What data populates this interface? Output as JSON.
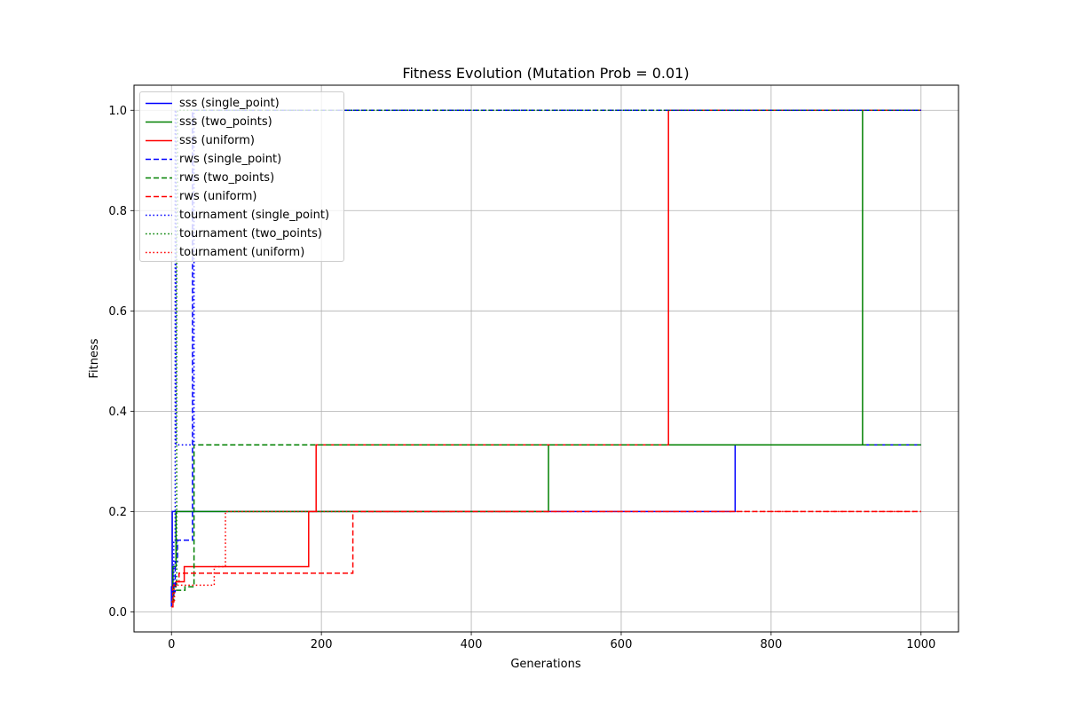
{
  "chart_data": {
    "type": "line",
    "title": "Fitness Evolution (Mutation Prob = 0.01)",
    "xlabel": "Generations",
    "ylabel": "Fitness",
    "xlim": [
      -50,
      1050
    ],
    "ylim": [
      -0.04,
      1.05
    ],
    "xticks": [
      0,
      200,
      400,
      600,
      800,
      1000
    ],
    "yticks": [
      0.0,
      0.2,
      0.4,
      0.6,
      0.8,
      1.0
    ],
    "xtick_labels": [
      "0",
      "200",
      "400",
      "600",
      "800",
      "1000"
    ],
    "ytick_labels": [
      "0.0",
      "0.2",
      "0.4",
      "0.6",
      "0.8",
      "1.0"
    ],
    "grid": true,
    "legend_position": "upper-left",
    "series": [
      {
        "name": "sss (single_point)",
        "color": "#0000ff",
        "style": "solid",
        "points": [
          [
            0,
            0.01
          ],
          [
            0,
            0.05
          ],
          [
            1,
            0.05
          ],
          [
            1,
            0.2
          ],
          [
            752,
            0.2
          ],
          [
            752,
            0.333
          ],
          [
            1000,
            0.333
          ]
        ]
      },
      {
        "name": "sss (two_points)",
        "color": "#008000",
        "style": "solid",
        "points": [
          [
            0,
            0.02
          ],
          [
            2,
            0.02
          ],
          [
            2,
            0.09
          ],
          [
            6,
            0.09
          ],
          [
            6,
            0.2
          ],
          [
            503,
            0.2
          ],
          [
            503,
            0.333
          ],
          [
            922,
            0.333
          ],
          [
            922,
            1.0
          ],
          [
            1000,
            1.0
          ]
        ]
      },
      {
        "name": "sss (uniform)",
        "color": "#ff0000",
        "style": "solid",
        "points": [
          [
            0,
            0.01
          ],
          [
            2,
            0.01
          ],
          [
            2,
            0.05
          ],
          [
            6,
            0.05
          ],
          [
            6,
            0.06
          ],
          [
            17,
            0.06
          ],
          [
            17,
            0.09
          ],
          [
            183,
            0.09
          ],
          [
            183,
            0.2
          ],
          [
            193,
            0.2
          ],
          [
            193,
            0.333
          ],
          [
            663,
            0.333
          ],
          [
            663,
            1.0
          ],
          [
            1000,
            1.0
          ]
        ]
      },
      {
        "name": "rws (single_point)",
        "color": "#0000ff",
        "style": "dashed",
        "points": [
          [
            0,
            0.04
          ],
          [
            5,
            0.04
          ],
          [
            5,
            0.1
          ],
          [
            8,
            0.1
          ],
          [
            8,
            0.143
          ],
          [
            28,
            0.143
          ],
          [
            28,
            1.0
          ],
          [
            1000,
            1.0
          ]
        ]
      },
      {
        "name": "rws (two_points)",
        "color": "#008000",
        "style": "dashed",
        "points": [
          [
            0,
            0.02
          ],
          [
            3,
            0.02
          ],
          [
            3,
            0.043
          ],
          [
            18,
            0.043
          ],
          [
            18,
            0.05
          ],
          [
            30,
            0.05
          ],
          [
            30,
            0.333
          ],
          [
            1000,
            0.333
          ]
        ]
      },
      {
        "name": "rws (uniform)",
        "color": "#ff0000",
        "style": "dashed",
        "points": [
          [
            0,
            0.02
          ],
          [
            3,
            0.02
          ],
          [
            3,
            0.06
          ],
          [
            10,
            0.06
          ],
          [
            10,
            0.077
          ],
          [
            242,
            0.077
          ],
          [
            242,
            0.2
          ],
          [
            1000,
            0.2
          ]
        ]
      },
      {
        "name": "tournament (single_point)",
        "color": "#0000ff",
        "style": "dotted",
        "points": [
          [
            0,
            0.03
          ],
          [
            3,
            0.03
          ],
          [
            3,
            0.14
          ],
          [
            5,
            0.14
          ],
          [
            5,
            1.0
          ],
          [
            6,
            1.0
          ],
          [
            6,
            0.333
          ],
          [
            30,
            0.333
          ],
          [
            30,
            1.0
          ],
          [
            1000,
            1.0
          ]
        ]
      },
      {
        "name": "tournament (two_points)",
        "color": "#008000",
        "style": "dotted",
        "points": [
          [
            0,
            0.02
          ],
          [
            3,
            0.02
          ],
          [
            3,
            0.05
          ],
          [
            7,
            0.05
          ],
          [
            7,
            0.75
          ],
          [
            8,
            0.75
          ],
          [
            8,
            1.0
          ],
          [
            1000,
            1.0
          ]
        ]
      },
      {
        "name": "tournament (uniform)",
        "color": "#ff0000",
        "style": "dotted",
        "points": [
          [
            0,
            0.02
          ],
          [
            4,
            0.02
          ],
          [
            4,
            0.053
          ],
          [
            57,
            0.053
          ],
          [
            57,
            0.09
          ],
          [
            72,
            0.09
          ],
          [
            72,
            0.2
          ],
          [
            1000,
            0.2
          ]
        ]
      }
    ]
  }
}
